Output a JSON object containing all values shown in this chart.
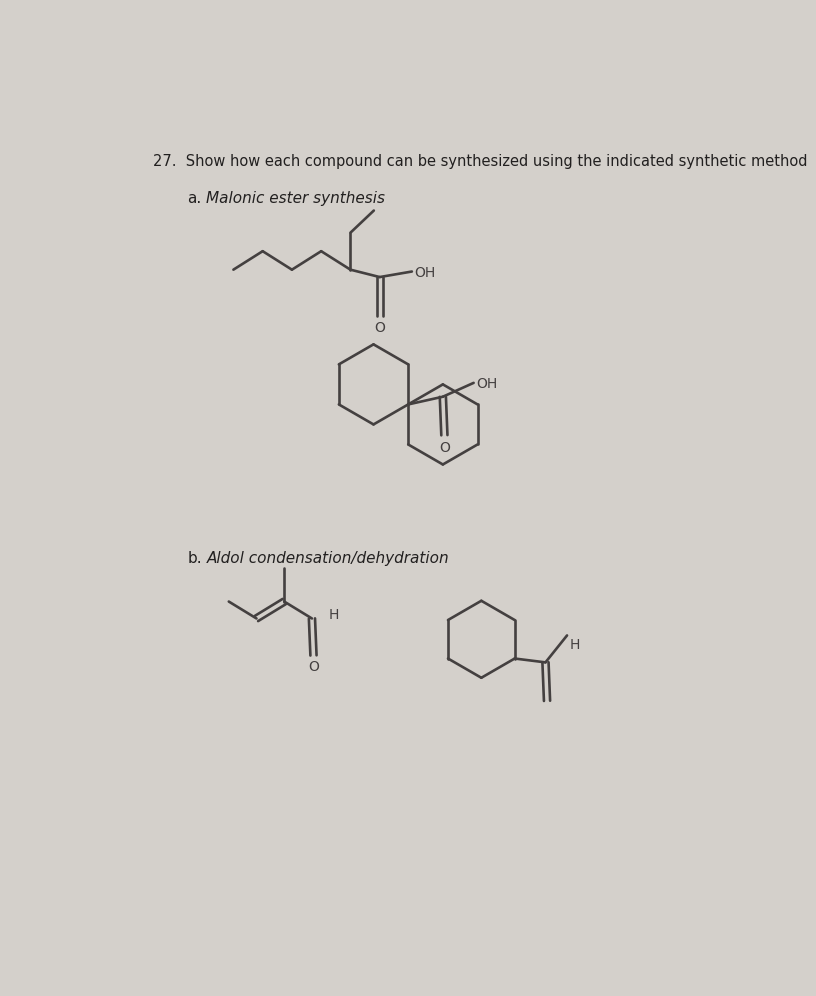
{
  "bg_color": "#d4d0cb",
  "title_text": "27.  Show how each compound can be synthesized using the indicated synthetic method",
  "title_fontsize": 10.5,
  "label_a_text": "a.",
  "method_a_text": "Malonic ester synthesis",
  "method_fontsize": 11,
  "label_b_text": "b.",
  "method_b_text": "Aldol condensation/dehydration",
  "line_color": "#444040",
  "line_width": 1.9,
  "text_color": "#222020",
  "font_size_label": 11
}
